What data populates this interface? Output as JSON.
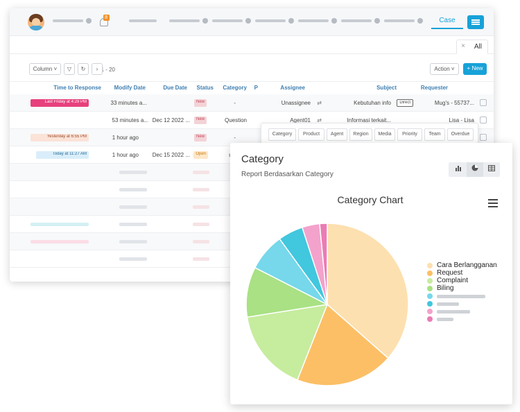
{
  "app": {
    "tab_case": "Case",
    "tab_all": "All",
    "badge": "8",
    "toolbar": {
      "new": "+ New",
      "action": "Action ˅",
      "pager": "1 - 20",
      "column": "Column ˅"
    },
    "headers": [
      "Requester",
      "Subject",
      "Assignee",
      "P",
      "Category",
      "Status",
      "Due Date",
      "Modify Date",
      "Time to Response"
    ],
    "rows": [
      {
        "requester": "Mug's - 55737...",
        "tag": "Direct",
        "subject": "Kebutuhan info",
        "assignee": "Unassignee",
        "category": "-",
        "status": "New",
        "due": "",
        "modify": "33 minutes a...",
        "ttr": "Last Friday at 4:29 PM"
      },
      {
        "requester": "Lisa - Lisa",
        "subject": "Informasi terkait...",
        "assignee": "Agent01",
        "category": "Question",
        "status": "New",
        "due": "Dec 12 2022 ...",
        "modify": "53 minutes a...",
        "ttr": ""
      },
      {
        "requester": "",
        "subject": "",
        "assignee": "",
        "category": "-",
        "status": "New",
        "due": "",
        "modify": "1 hour ago",
        "ttr": "Yesterday at 6:55 PM"
      },
      {
        "requester": "",
        "subject": "",
        "assignee": "",
        "category": "uestion",
        "status": "Open",
        "due": "Dec 15 2022 ...",
        "modify": "1 hour ago",
        "ttr": "Today at 11:27 AM"
      }
    ]
  },
  "filters": [
    "Category",
    "Product",
    "Agent",
    "Region",
    "Media",
    "Priority",
    "Team",
    "Overdue"
  ],
  "card": {
    "title": "Category",
    "subtitle": "Report Berdasarkan Category",
    "chart_title": "Category Chart"
  },
  "colors": {
    "accent": "#17a2d8",
    "new_badge": "#f3d3d7",
    "open_badge": "#fde7c8"
  },
  "chart_data": {
    "type": "pie",
    "title": "Category Chart",
    "slices": [
      {
        "name": "Cara Berlangganan",
        "value": 36.5,
        "color": "#fde0b0"
      },
      {
        "name": "Request",
        "value": 19.5,
        "color": "#fcbf66"
      },
      {
        "name": "Complaint",
        "value": 16.5,
        "color": "#c6ec9e"
      },
      {
        "name": "Biling",
        "value": 10.0,
        "color": "#a9e184"
      },
      {
        "name": "",
        "value": 7.5,
        "color": "#76d8ea"
      },
      {
        "name": "",
        "value": 5.0,
        "color": "#41c7de"
      },
      {
        "name": "",
        "value": 3.5,
        "color": "#f3a2cc"
      },
      {
        "name": "",
        "value": 1.5,
        "color": "#eb7cb3"
      }
    ],
    "legend_position": "right"
  }
}
